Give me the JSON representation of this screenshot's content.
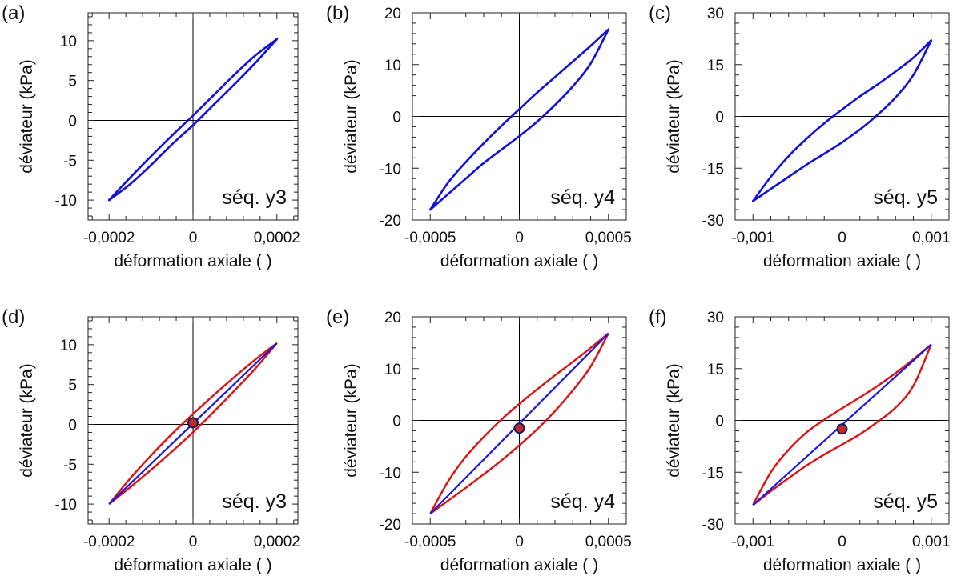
{
  "figure": {
    "xlabel": "déformation axiale ( )",
    "ylabel": "déviateur (kPa)"
  },
  "colors": {
    "measured": "#1010e0",
    "model_loop": "#e01010",
    "model_backbone": "#1a1ae6",
    "marker_fill": "#c22a2a",
    "marker_edge": "#1a1a60"
  },
  "chart_data": [
    {
      "panel": "(a)",
      "type": "line",
      "sequence": "séq. y3",
      "style": "measured",
      "xlim": [
        -0.00025,
        0.00025
      ],
      "ylim": [
        -12.5,
        13.5
      ],
      "xticks": [
        -0.0002,
        0,
        0.0002
      ],
      "xtick_labels": [
        "-0,0002",
        "0",
        "0,0002"
      ],
      "yticks": [
        -10,
        -5,
        0,
        5,
        10
      ],
      "ytick_labels": [
        "-10",
        "-5",
        "0",
        "5",
        "10"
      ],
      "series": [
        {
          "role": "loading",
          "points": [
            [
              -0.0002,
              -10.0
            ],
            [
              -0.00015,
              -8.0
            ],
            [
              -0.0001,
              -5.6
            ],
            [
              -5e-05,
              -3.0
            ],
            [
              0,
              -0.6
            ],
            [
              5e-05,
              2.0
            ],
            [
              0.0001,
              4.6
            ],
            [
              0.00015,
              7.3
            ],
            [
              0.0002,
              10.2
            ]
          ]
        },
        {
          "role": "unloading",
          "points": [
            [
              0.0002,
              10.2
            ],
            [
              0.00015,
              8.2
            ],
            [
              0.0001,
              5.8
            ],
            [
              5e-05,
              3.2
            ],
            [
              0,
              0.6
            ],
            [
              -5e-05,
              -1.9
            ],
            [
              -0.0001,
              -4.5
            ],
            [
              -0.00015,
              -7.2
            ],
            [
              -0.0002,
              -10.0
            ]
          ]
        }
      ]
    },
    {
      "panel": "(b)",
      "type": "line",
      "sequence": "séq. y4",
      "style": "measured",
      "xlim": [
        -0.0006,
        0.0006
      ],
      "ylim": [
        -20,
        20
      ],
      "xticks": [
        -0.0005,
        0,
        0.0005
      ],
      "xtick_labels": [
        "-0,0005",
        "0",
        "0,0005"
      ],
      "yticks": [
        -20,
        -10,
        0,
        10,
        20
      ],
      "ytick_labels": [
        "-20",
        "-10",
        "0",
        "10",
        "20"
      ],
      "series": [
        {
          "role": "loading",
          "points": [
            [
              -0.0005,
              -18.0
            ],
            [
              -0.0004,
              -15.0
            ],
            [
              -0.0003,
              -12.0
            ],
            [
              -0.0002,
              -9.0
            ],
            [
              -0.0001,
              -6.4
            ],
            [
              0,
              -3.8
            ],
            [
              0.0001,
              -1.0
            ],
            [
              0.0002,
              2.2
            ],
            [
              0.0003,
              5.8
            ],
            [
              0.0004,
              10.2
            ],
            [
              0.0005,
              16.8
            ]
          ]
        },
        {
          "role": "unloading",
          "points": [
            [
              0.0005,
              16.8
            ],
            [
              0.0004,
              13.6
            ],
            [
              0.0003,
              10.6
            ],
            [
              0.0002,
              7.6
            ],
            [
              0.0001,
              4.6
            ],
            [
              0,
              1.4
            ],
            [
              -0.0001,
              -1.8
            ],
            [
              -0.0002,
              -5.2
            ],
            [
              -0.0003,
              -8.8
            ],
            [
              -0.0004,
              -12.8
            ],
            [
              -0.0005,
              -18.0
            ]
          ]
        }
      ]
    },
    {
      "panel": "(c)",
      "type": "line",
      "sequence": "séq. y5",
      "style": "measured",
      "xlim": [
        -0.0012,
        0.0012
      ],
      "ylim": [
        -30,
        30
      ],
      "xticks": [
        -0.001,
        0,
        0.001
      ],
      "xtick_labels": [
        "-0,001",
        "0",
        "0,001"
      ],
      "yticks": [
        -30,
        -15,
        0,
        15,
        30
      ],
      "ytick_labels": [
        "-30",
        "-15",
        "0",
        "15",
        "30"
      ],
      "series": [
        {
          "role": "loading",
          "points": [
            [
              -0.001,
              -24.5
            ],
            [
              -0.0008,
              -21.0
            ],
            [
              -0.0006,
              -17.5
            ],
            [
              -0.0004,
              -14.0
            ],
            [
              -0.0002,
              -10.8
            ],
            [
              0,
              -7.5
            ],
            [
              0.0002,
              -3.8
            ],
            [
              0.0004,
              0.5
            ],
            [
              0.0006,
              5.5
            ],
            [
              0.0008,
              12.0
            ],
            [
              0.001,
              22.0
            ]
          ]
        },
        {
          "role": "unloading",
          "points": [
            [
              0.001,
              22.0
            ],
            [
              0.0008,
              17.0
            ],
            [
              0.0006,
              13.0
            ],
            [
              0.0004,
              9.3
            ],
            [
              0.0002,
              5.8
            ],
            [
              0,
              2.0
            ],
            [
              -0.0002,
              -2.0
            ],
            [
              -0.0004,
              -6.5
            ],
            [
              -0.0006,
              -11.5
            ],
            [
              -0.0008,
              -17.5
            ],
            [
              -0.001,
              -24.5
            ]
          ]
        }
      ]
    },
    {
      "panel": "(d)",
      "type": "line",
      "sequence": "séq. y3",
      "style": "model",
      "xlim": [
        -0.00025,
        0.00025
      ],
      "ylim": [
        -12.5,
        13.5
      ],
      "xticks": [
        -0.0002,
        0,
        0.0002
      ],
      "xtick_labels": [
        "-0,0002",
        "0",
        "0,0002"
      ],
      "yticks": [
        -10,
        -5,
        0,
        5,
        10
      ],
      "ytick_labels": [
        "-10",
        "-5",
        "0",
        "5",
        "10"
      ],
      "backbone": [
        [
          -0.0002,
          -10.0
        ],
        [
          0.0002,
          10.2
        ]
      ],
      "loop_upper": [
        [
          -0.0002,
          -10.0
        ],
        [
          -0.00015,
          -6.8
        ],
        [
          -0.0001,
          -3.9
        ],
        [
          -5e-05,
          -1.2
        ],
        [
          0,
          1.3
        ],
        [
          5e-05,
          3.7
        ],
        [
          0.0001,
          6.0
        ],
        [
          0.00015,
          8.2
        ],
        [
          0.0002,
          10.2
        ]
      ],
      "loop_lower": [
        [
          -0.0002,
          -10.0
        ],
        [
          -0.00015,
          -7.9
        ],
        [
          -0.0001,
          -5.7
        ],
        [
          -5e-05,
          -3.4
        ],
        [
          0,
          -1.0
        ],
        [
          5e-05,
          1.6
        ],
        [
          0.0001,
          4.3
        ],
        [
          0.00015,
          7.1
        ],
        [
          0.0002,
          10.2
        ]
      ],
      "marker": [
        0,
        0.2
      ]
    },
    {
      "panel": "(e)",
      "type": "line",
      "sequence": "séq. y4",
      "style": "model",
      "xlim": [
        -0.0006,
        0.0006
      ],
      "ylim": [
        -20,
        20
      ],
      "xticks": [
        -0.0005,
        0,
        0.0005
      ],
      "xtick_labels": [
        "-0,0005",
        "0",
        "0,0005"
      ],
      "yticks": [
        -20,
        -10,
        0,
        10,
        20
      ],
      "ytick_labels": [
        "-20",
        "-10",
        "0",
        "10",
        "20"
      ],
      "backbone": [
        [
          -0.0005,
          -18.0
        ],
        [
          0.0005,
          16.8
        ]
      ],
      "loop_upper": [
        [
          -0.0005,
          -18.0
        ],
        [
          -0.0004,
          -11.8
        ],
        [
          -0.0003,
          -7.0
        ],
        [
          -0.0002,
          -3.2
        ],
        [
          -0.0001,
          0.2
        ],
        [
          0,
          3.2
        ],
        [
          0.0001,
          6.0
        ],
        [
          0.0002,
          8.7
        ],
        [
          0.0003,
          11.3
        ],
        [
          0.0004,
          14.0
        ],
        [
          0.0005,
          16.8
        ]
      ],
      "loop_lower": [
        [
          -0.0005,
          -18.0
        ],
        [
          -0.0004,
          -15.5
        ],
        [
          -0.0003,
          -13.0
        ],
        [
          -0.0002,
          -10.4
        ],
        [
          -0.0001,
          -7.7
        ],
        [
          0,
          -4.8
        ],
        [
          0.0001,
          -1.7
        ],
        [
          0.0002,
          1.8
        ],
        [
          0.0003,
          5.8
        ],
        [
          0.0004,
          10.4
        ],
        [
          0.0005,
          16.8
        ]
      ],
      "marker": [
        0,
        -1.5
      ]
    },
    {
      "panel": "(f)",
      "type": "line",
      "sequence": "séq. y5",
      "style": "model",
      "xlim": [
        -0.0012,
        0.0012
      ],
      "ylim": [
        -30,
        30
      ],
      "xticks": [
        -0.001,
        0,
        0.001
      ],
      "xtick_labels": [
        "-0,001",
        "0",
        "0,001"
      ],
      "yticks": [
        -30,
        -15,
        0,
        15,
        30
      ],
      "ytick_labels": [
        "-30",
        "-15",
        "0",
        "15",
        "30"
      ],
      "backbone": [
        [
          -0.001,
          -24.5
        ],
        [
          0.001,
          22.0
        ]
      ],
      "loop_upper": [
        [
          -0.001,
          -24.5
        ],
        [
          -0.0008,
          -15.0
        ],
        [
          -0.0006,
          -8.5
        ],
        [
          -0.0004,
          -3.5
        ],
        [
          -0.0002,
          0.2
        ],
        [
          0,
          3.5
        ],
        [
          0.0002,
          6.7
        ],
        [
          0.0004,
          10.0
        ],
        [
          0.0006,
          13.7
        ],
        [
          0.0008,
          17.7
        ],
        [
          0.001,
          22.0
        ]
      ],
      "loop_lower": [
        [
          -0.001,
          -24.5
        ],
        [
          -0.0008,
          -20.5
        ],
        [
          -0.0006,
          -16.7
        ],
        [
          -0.0004,
          -13.1
        ],
        [
          -0.0002,
          -9.9
        ],
        [
          0,
          -7.0
        ],
        [
          0.0002,
          -4.0
        ],
        [
          0.0004,
          -0.4
        ],
        [
          0.0006,
          3.7
        ],
        [
          0.0008,
          10.0
        ],
        [
          0.001,
          22.0
        ]
      ],
      "marker": [
        0,
        -2.5
      ]
    }
  ]
}
